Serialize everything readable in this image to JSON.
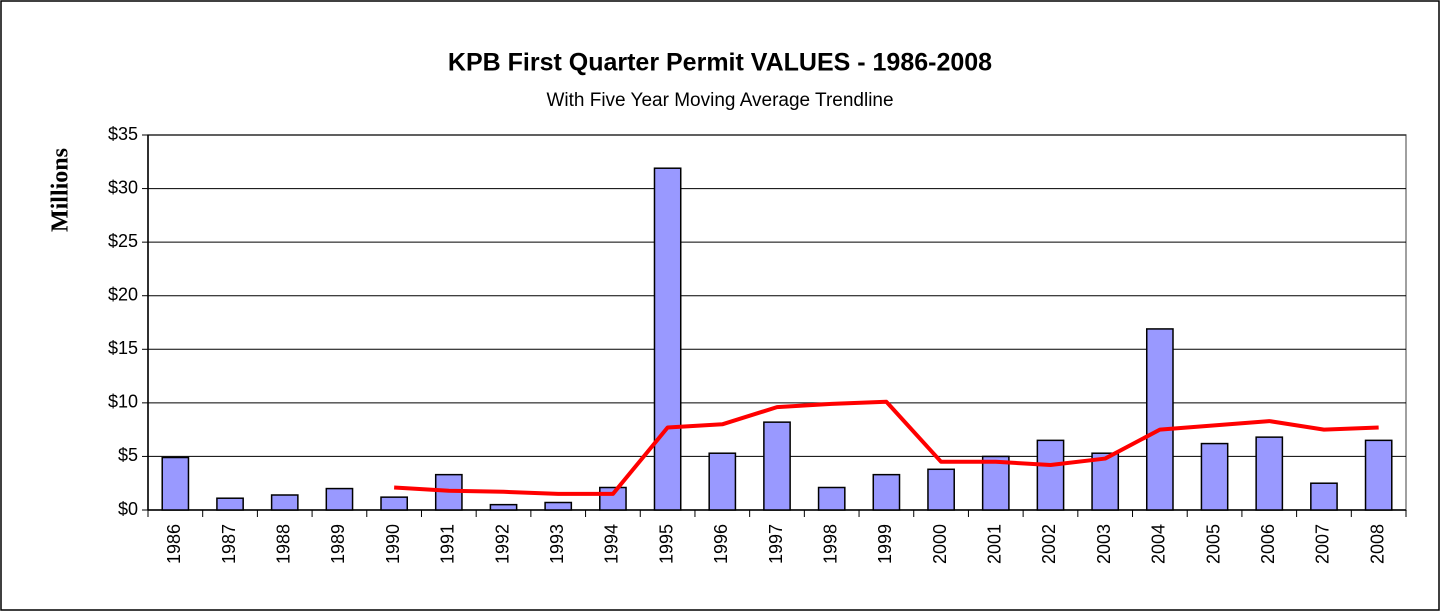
{
  "chart_data": {
    "type": "bar",
    "title": "KPB First Quarter Permit VALUES - 1986-2008",
    "subtitle": "With Five Year Moving Average Trendline",
    "y_label": "Millions",
    "categories": [
      "1986",
      "1987",
      "1988",
      "1989",
      "1990",
      "1991",
      "1992",
      "1993",
      "1994",
      "1995",
      "1996",
      "1997",
      "1998",
      "1999",
      "2000",
      "2001",
      "2002",
      "2003",
      "2004",
      "2005",
      "2006",
      "2007",
      "2008"
    ],
    "series": [
      {
        "type": "bar",
        "color": "#9999ff",
        "values": [
          4.9,
          1.1,
          1.4,
          2.0,
          1.2,
          3.3,
          0.5,
          0.7,
          2.1,
          31.9,
          5.3,
          8.2,
          2.1,
          3.3,
          3.8,
          5.0,
          6.5,
          5.3,
          16.9,
          6.2,
          6.8,
          2.5,
          6.5
        ]
      },
      {
        "type": "line",
        "color": "#ff0000",
        "values": [
          null,
          null,
          null,
          null,
          2.1,
          1.8,
          1.7,
          1.5,
          1.5,
          7.7,
          8.0,
          9.6,
          9.9,
          10.1,
          4.5,
          4.5,
          4.2,
          4.8,
          7.5,
          7.9,
          8.3,
          7.5,
          7.7
        ]
      }
    ],
    "ylim": [
      0,
      35
    ],
    "yticks": [
      {
        "value": 0,
        "label": "$0"
      },
      {
        "value": 5,
        "label": "$5"
      },
      {
        "value": 10,
        "label": "$10"
      },
      {
        "value": 15,
        "label": "$15"
      },
      {
        "value": 20,
        "label": "$20"
      },
      {
        "value": 25,
        "label": "$25"
      },
      {
        "value": 30,
        "label": "$30"
      },
      {
        "value": 35,
        "label": "$35"
      }
    ],
    "grid": true
  }
}
